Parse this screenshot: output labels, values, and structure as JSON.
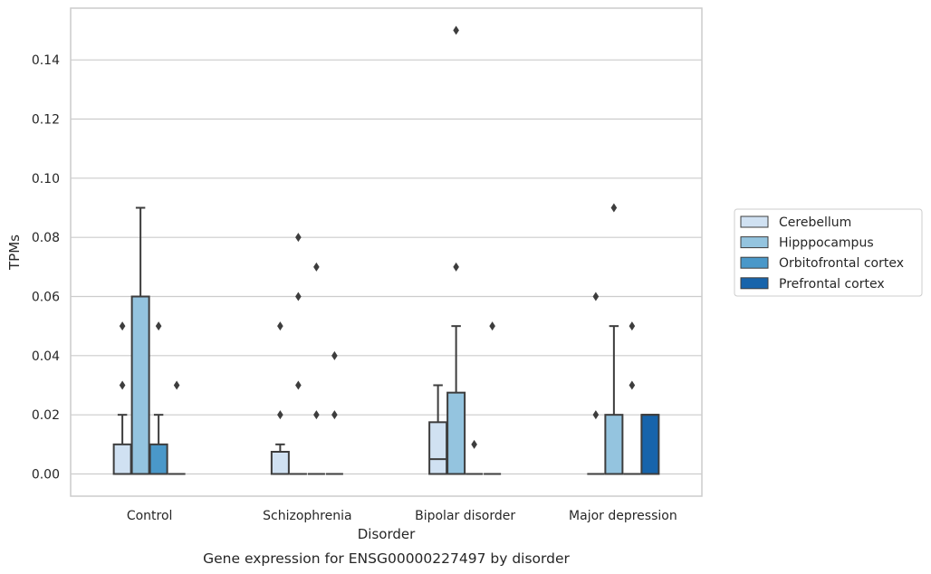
{
  "chart_data": {
    "type": "box",
    "caption": "Gene expression for ENSG00000227497 by disorder",
    "xlabel": "Disorder",
    "ylabel": "TPMs",
    "ylim": [
      -0.0075,
      0.1575
    ],
    "yticks": [
      "0.00",
      "0.02",
      "0.04",
      "0.06",
      "0.08",
      "0.10",
      "0.12",
      "0.14"
    ],
    "ytick_values": [
      0,
      0.02,
      0.04,
      0.06,
      0.08,
      0.1,
      0.12,
      0.14
    ],
    "grid": true,
    "legend_position": "right",
    "categories": [
      "Control",
      "Schizophrenia",
      "Bipolar disorder",
      "Major depression"
    ],
    "series": [
      {
        "name": "Cerebellum",
        "color": "#d0e1f2",
        "boxes": [
          {
            "q1": 0,
            "median": 0,
            "q3": 0.01,
            "whisker_low": 0,
            "whisker_high": 0.02,
            "outliers": [
              0.03,
              0.05
            ]
          },
          {
            "q1": 0,
            "median": 0,
            "q3": 0.0075,
            "whisker_low": 0,
            "whisker_high": 0.01,
            "outliers": [
              0.02,
              0.05
            ]
          },
          {
            "q1": 0,
            "median": 0.005,
            "q3": 0.0175,
            "whisker_low": 0,
            "whisker_high": 0.03,
            "outliers": []
          },
          {
            "q1": 0,
            "median": 0,
            "q3": 0,
            "whisker_low": 0,
            "whisker_high": 0,
            "outliers": [
              0.02,
              0.06
            ]
          }
        ]
      },
      {
        "name": "Hipppocampus",
        "color": "#94c4df",
        "boxes": [
          {
            "q1": 0,
            "median": 0,
            "q3": 0.06,
            "whisker_low": 0,
            "whisker_high": 0.09,
            "outliers": []
          },
          {
            "q1": 0,
            "median": 0,
            "q3": 0,
            "whisker_low": 0,
            "whisker_high": 0,
            "outliers": [
              0.03,
              0.06,
              0.08
            ]
          },
          {
            "q1": 0,
            "median": 0,
            "q3": 0.0275,
            "whisker_low": 0,
            "whisker_high": 0.05,
            "outliers": [
              0.07,
              0.15
            ]
          },
          {
            "q1": 0,
            "median": 0,
            "q3": 0.02,
            "whisker_low": 0,
            "whisker_high": 0.05,
            "outliers": [
              0.09
            ]
          }
        ]
      },
      {
        "name": "Orbitofrontal cortex",
        "color": "#4a98c9",
        "boxes": [
          {
            "q1": 0,
            "median": 0,
            "q3": 0.01,
            "whisker_low": 0,
            "whisker_high": 0.02,
            "outliers": [
              0.05
            ]
          },
          {
            "q1": 0,
            "median": 0,
            "q3": 0,
            "whisker_low": 0,
            "whisker_high": 0,
            "outliers": [
              0.02,
              0.07
            ]
          },
          {
            "q1": 0,
            "median": 0,
            "q3": 0,
            "whisker_low": 0,
            "whisker_high": 0,
            "outliers": [
              0.01
            ]
          },
          {
            "q1": 0,
            "median": 0,
            "q3": 0,
            "whisker_low": 0,
            "whisker_high": 0,
            "outliers": [
              0.03,
              0.05
            ]
          }
        ]
      },
      {
        "name": "Prefrontal cortex",
        "color": "#1764ab",
        "boxes": [
          {
            "q1": 0,
            "median": 0,
            "q3": 0,
            "whisker_low": 0,
            "whisker_high": 0,
            "outliers": [
              0.03
            ]
          },
          {
            "q1": 0,
            "median": 0,
            "q3": 0,
            "whisker_low": 0,
            "whisker_high": 0,
            "outliers": [
              0.02,
              0.04
            ]
          },
          {
            "q1": 0,
            "median": 0,
            "q3": 0,
            "whisker_low": 0,
            "whisker_high": 0,
            "outliers": [
              0.05
            ]
          },
          {
            "q1": 0,
            "median": 0.02,
            "q3": 0.02,
            "whisker_low": 0,
            "whisker_high": 0.02,
            "outliers": []
          }
        ]
      }
    ]
  }
}
